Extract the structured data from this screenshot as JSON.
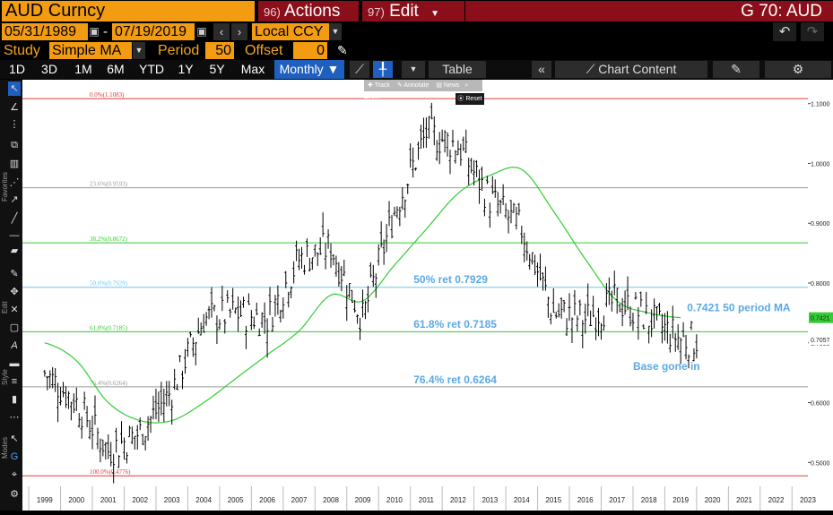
{
  "header": {
    "ticker": "AUD Curncy",
    "actions_num": "96)",
    "actions_label": "Actions",
    "edit_num": "97)",
    "edit_label": "Edit",
    "right_title": "G 70: AUD"
  },
  "dates": {
    "start": "05/31/1989",
    "sep": "-",
    "end": "07/19/2019",
    "currency": "Local CCY"
  },
  "study": {
    "study_label": "Study",
    "study_value": "Simple MA",
    "period_label": "Period",
    "period_value": "50",
    "offset_label": "Offset",
    "offset_value": "0"
  },
  "ranges": [
    "1D",
    "3D",
    "1M",
    "6M",
    "YTD",
    "1Y",
    "5Y",
    "Max"
  ],
  "toolbar": {
    "frequency": "Monthly",
    "table_label": "Table",
    "chart_content_label": "Chart Content"
  },
  "zoom": {
    "items": [
      "Track",
      "Annotate",
      "News",
      "Zoom"
    ],
    "reset": "Reset"
  },
  "left_labels": {
    "favorites": "Favorites",
    "edit": "Edit",
    "style": "Style",
    "modes": "Modes"
  },
  "colors": {
    "accent_orange": "#f39c12",
    "menu_red": "#8b0f1a",
    "selected_blue": "#1f5fbf",
    "price": "#000000",
    "ma": "#33cc33",
    "fib_0": "#e23b3b",
    "fib_23": "#999999",
    "fib_38": "#33cc33",
    "fib_50": "#6ec6f0",
    "fib_61": "#33cc33",
    "fib_76": "#999999",
    "fib_100": "#e23b3b",
    "annotation": "#5aa9e6"
  },
  "chart_data": {
    "type": "line",
    "x": [
      "1999",
      "2000",
      "2001",
      "2002",
      "2003",
      "2004",
      "2005",
      "2006",
      "2007",
      "2008",
      "2009",
      "2010",
      "2011",
      "2012",
      "2013",
      "2014",
      "2015",
      "2016",
      "2017",
      "2018",
      "2019"
    ],
    "series": [
      {
        "values": [
          0.65,
          0.6,
          0.52,
          0.55,
          0.62,
          0.74,
          0.75,
          0.74,
          0.84,
          0.86,
          0.74,
          0.92,
          1.05,
          1.03,
          0.94,
          0.89,
          0.75,
          0.74,
          0.77,
          0.74,
          0.7057
        ]
      },
      {
        "values": [
          0.7,
          0.67,
          0.6,
          0.57,
          0.57,
          0.6,
          0.64,
          0.68,
          0.72,
          0.78,
          0.77,
          0.83,
          0.89,
          0.95,
          0.98,
          0.99,
          0.92,
          0.84,
          0.77,
          0.75,
          0.7421
        ]
      }
    ],
    "ylim": [
      0.46,
      1.14
    ],
    "xlim": [
      1998.8,
      2023.5
    ],
    "y_ticks": [
      "0.5000",
      "0.6000",
      "0.7000",
      "0.8000",
      "0.9000",
      "1.0000",
      "1.1000"
    ],
    "x_ticks": [
      "1999",
      "2000",
      "2001",
      "2002",
      "2003",
      "2004",
      "2005",
      "2006",
      "2007",
      "2008",
      "2009",
      "2010",
      "2011",
      "2012",
      "2013",
      "2014",
      "2015",
      "2016",
      "2017",
      "2018",
      "2019",
      "2020",
      "2021",
      "2022",
      "2023"
    ],
    "last_price_label": "0.7057",
    "ma_value_label": "0.7421",
    "fib_levels": [
      {
        "label": "0.0%(1.1083)",
        "value": 1.1083,
        "color": "#e23b3b"
      },
      {
        "label": "23.6%(0.9593)",
        "value": 0.9593,
        "color": "#999999"
      },
      {
        "label": "38.2%(0.8672)",
        "value": 0.8672,
        "color": "#33cc33"
      },
      {
        "label": "50.0%(0.7929)",
        "value": 0.7929,
        "color": "#6ec6f0"
      },
      {
        "label": "61.8%(0.7185)",
        "value": 0.7185,
        "color": "#33cc33"
      },
      {
        "label": "76.4%(0.6264)",
        "value": 0.6264,
        "color": "#999999"
      },
      {
        "label": "100.0%(0.4776)",
        "value": 0.4776,
        "color": "#e23b3b"
      }
    ],
    "annotations": [
      {
        "text": "50% ret 0.7929",
        "x": 2011.1,
        "y": 0.8
      },
      {
        "text": "61.8% ret 0.7185",
        "x": 2011.1,
        "y": 0.725
      },
      {
        "text": "76.4% ret 0.6264",
        "x": 2011.1,
        "y": 0.632
      },
      {
        "text": "0.7421 50 period MA",
        "x": 2019.7,
        "y": 0.753
      },
      {
        "text": "Base gone in",
        "x": 2018.0,
        "y": 0.655
      }
    ],
    "grid": false,
    "legend": "none"
  }
}
